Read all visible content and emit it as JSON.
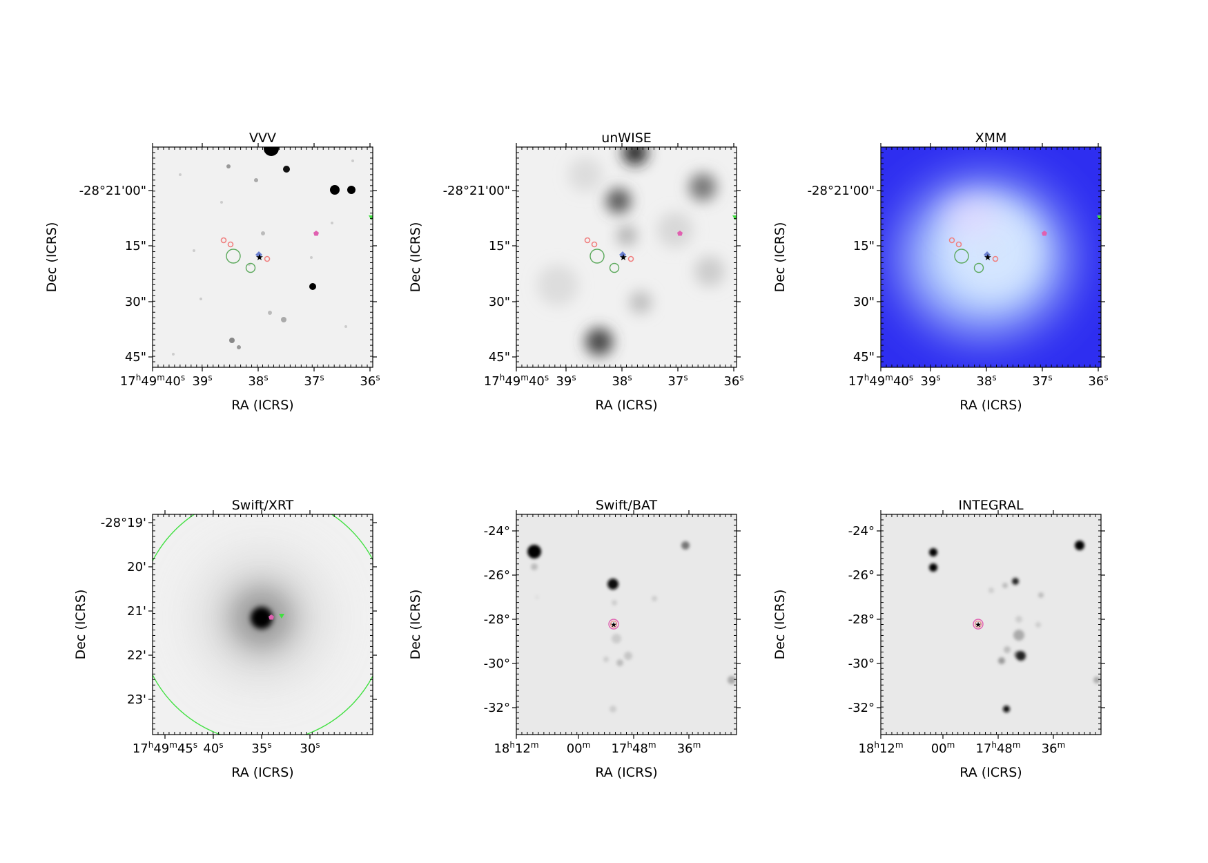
{
  "panels": [
    {
      "id": "vvv",
      "title": "VVV",
      "xlabel": "RA (ICRS)",
      "ylabel": "Dec (ICRS)",
      "bg": "light",
      "yticks": [
        "-28°21'00\"",
        "15\"",
        "30\"",
        "45\""
      ],
      "xticks": [
        {
          "parts": [
            [
              "17",
              ""
            ],
            [
              "h",
              "sup"
            ],
            [
              "49",
              ""
            ],
            [
              "m",
              "sup"
            ],
            [
              "40",
              ""
            ],
            [
              "s",
              "sup"
            ]
          ]
        },
        {
          "parts": [
            [
              "39",
              ""
            ],
            [
              "s",
              "sup"
            ]
          ]
        },
        {
          "parts": [
            [
              "38",
              ""
            ],
            [
              "s",
              "sup"
            ]
          ]
        },
        {
          "parts": [
            [
              "37",
              ""
            ],
            [
              "s",
              "sup"
            ]
          ]
        },
        {
          "parts": [
            [
              "36",
              ""
            ],
            [
              "s",
              "sup"
            ]
          ]
        }
      ]
    },
    {
      "id": "unwise",
      "title": "unWISE",
      "xlabel": "RA (ICRS)",
      "ylabel": "Dec (ICRS)",
      "bg": "light",
      "yticks": [
        "-28°21'00\"",
        "15\"",
        "30\"",
        "45\""
      ],
      "xticks": [
        {
          "parts": [
            [
              "17",
              ""
            ],
            [
              "h",
              "sup"
            ],
            [
              "49",
              ""
            ],
            [
              "m",
              "sup"
            ],
            [
              "40",
              ""
            ],
            [
              "s",
              "sup"
            ]
          ]
        },
        {
          "parts": [
            [
              "39",
              ""
            ],
            [
              "s",
              "sup"
            ]
          ]
        },
        {
          "parts": [
            [
              "38",
              ""
            ],
            [
              "s",
              "sup"
            ]
          ]
        },
        {
          "parts": [
            [
              "37",
              ""
            ],
            [
              "s",
              "sup"
            ]
          ]
        },
        {
          "parts": [
            [
              "36",
              ""
            ],
            [
              "s",
              "sup"
            ]
          ]
        }
      ]
    },
    {
      "id": "xmm",
      "title": "XMM",
      "xlabel": "RA (ICRS)",
      "ylabel": "Dec (ICRS)",
      "bg": "blue",
      "yticks": [
        "-28°21'00\"",
        "15\"",
        "30\"",
        "45\""
      ],
      "xticks": [
        {
          "parts": [
            [
              "17",
              ""
            ],
            [
              "h",
              "sup"
            ],
            [
              "49",
              ""
            ],
            [
              "m",
              "sup"
            ],
            [
              "40",
              ""
            ],
            [
              "s",
              "sup"
            ]
          ]
        },
        {
          "parts": [
            [
              "39",
              ""
            ],
            [
              "s",
              "sup"
            ]
          ]
        },
        {
          "parts": [
            [
              "38",
              ""
            ],
            [
              "s",
              "sup"
            ]
          ]
        },
        {
          "parts": [
            [
              "37",
              ""
            ],
            [
              "s",
              "sup"
            ]
          ]
        },
        {
          "parts": [
            [
              "36",
              ""
            ],
            [
              "s",
              "sup"
            ]
          ]
        }
      ]
    },
    {
      "id": "swift-xrt",
      "title": "Swift/XRT",
      "xlabel": "RA (ICRS)",
      "ylabel": "Dec (ICRS)",
      "bg": "light",
      "yticks": [
        "-28°19'",
        "20'",
        "21'",
        "22'",
        "23'"
      ],
      "xticks": [
        {
          "parts": [
            [
              "17",
              ""
            ],
            [
              "h",
              "sup"
            ],
            [
              "49",
              ""
            ],
            [
              "m",
              "sup"
            ],
            [
              "45",
              ""
            ],
            [
              "s",
              "sup"
            ]
          ]
        },
        {
          "parts": [
            [
              "40",
              ""
            ],
            [
              "s",
              "sup"
            ]
          ]
        },
        {
          "parts": [
            [
              "35",
              ""
            ],
            [
              "s",
              "sup"
            ]
          ]
        },
        {
          "parts": [
            [
              "30",
              ""
            ],
            [
              "s",
              "sup"
            ]
          ]
        }
      ]
    },
    {
      "id": "swift-bat",
      "title": "Swift/BAT",
      "xlabel": "RA (ICRS)",
      "ylabel": "Dec (ICRS)",
      "bg": "light",
      "yticks": [
        "-24°",
        "-26°",
        "-28°",
        "-30°",
        "-32°"
      ],
      "xticks": [
        {
          "parts": [
            [
              "18",
              ""
            ],
            [
              "h",
              "sup"
            ],
            [
              "12",
              ""
            ],
            [
              "m",
              "sup"
            ]
          ]
        },
        {
          "parts": [
            [
              "00",
              ""
            ],
            [
              "m",
              "sup"
            ]
          ]
        },
        {
          "parts": [
            [
              "17",
              ""
            ],
            [
              "h",
              "sup"
            ],
            [
              "48",
              ""
            ],
            [
              "m",
              "sup"
            ]
          ]
        },
        {
          "parts": [
            [
              "36",
              ""
            ],
            [
              "m",
              "sup"
            ]
          ]
        }
      ]
    },
    {
      "id": "integral",
      "title": "INTEGRAL",
      "xlabel": "RA (ICRS)",
      "ylabel": "Dec (ICRS)",
      "bg": "light",
      "yticks": [
        "-24°",
        "-26°",
        "-28°",
        "-30°",
        "-32°"
      ],
      "xticks": [
        {
          "parts": [
            [
              "18",
              ""
            ],
            [
              "h",
              "sup"
            ],
            [
              "12",
              ""
            ],
            [
              "m",
              "sup"
            ]
          ]
        },
        {
          "parts": [
            [
              "00",
              ""
            ],
            [
              "m",
              "sup"
            ]
          ]
        },
        {
          "parts": [
            [
              "17",
              ""
            ],
            [
              "h",
              "sup"
            ],
            [
              "48",
              ""
            ],
            [
              "m",
              "sup"
            ]
          ]
        },
        {
          "parts": [
            [
              "36",
              ""
            ],
            [
              "m",
              "sup"
            ]
          ]
        }
      ]
    }
  ],
  "colors": {
    "marker_red": "#f08080",
    "marker_green": "#5aa85a",
    "marker_pink": "#e060b0",
    "marker_orange": "#ffa500",
    "marker_blue": "#6a7fd0",
    "marker_lime": "#40e040",
    "xmm_blue": "#2e2ef0",
    "xmm_glow": "#bcd8ff"
  }
}
